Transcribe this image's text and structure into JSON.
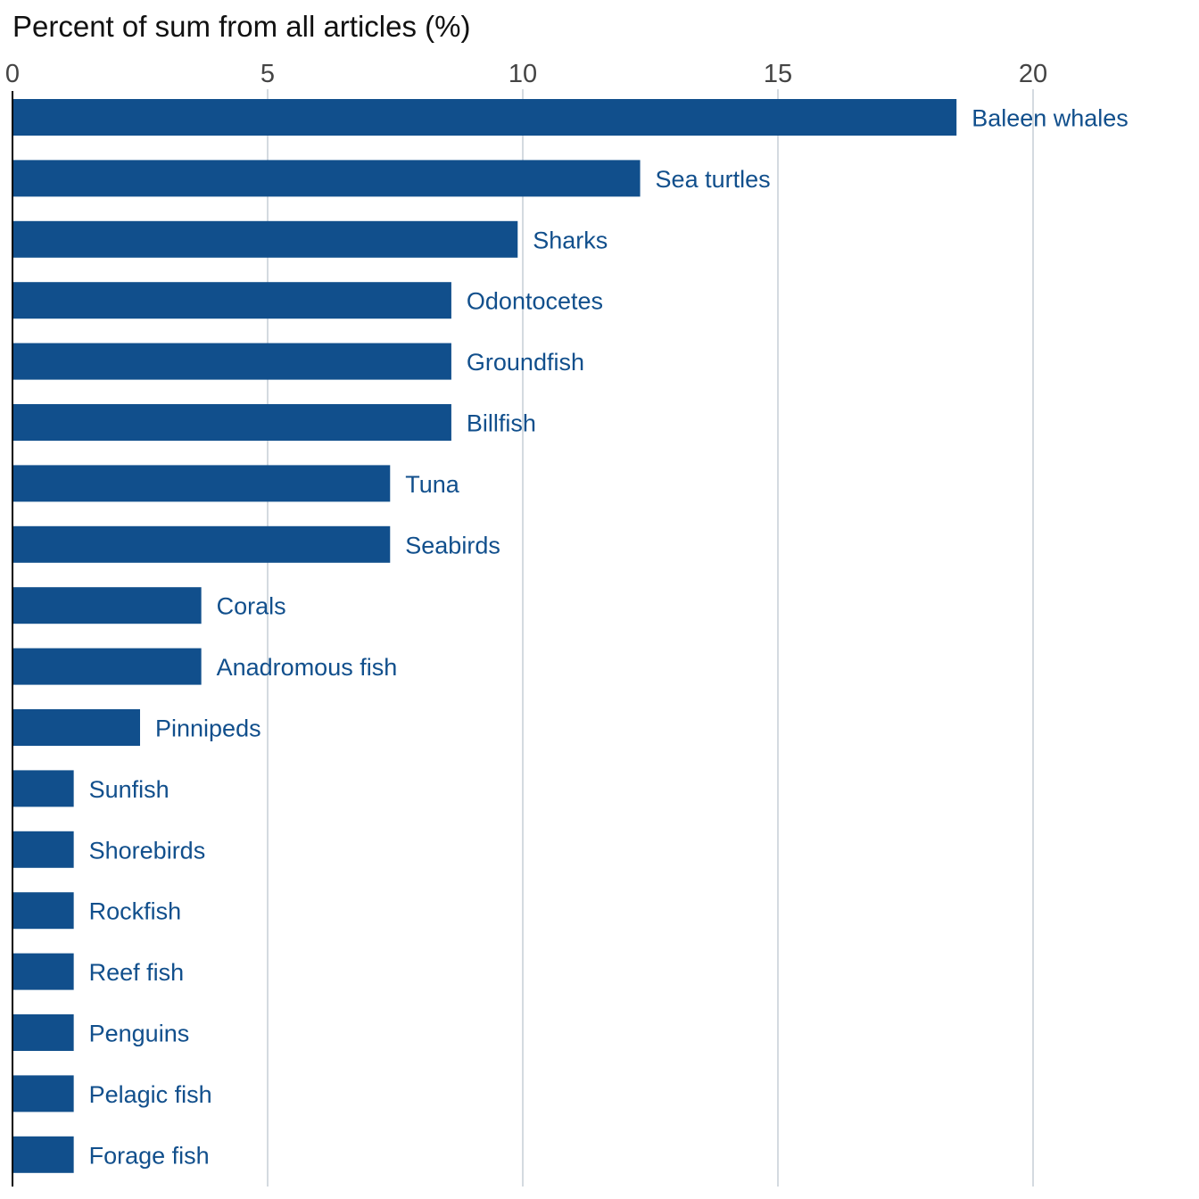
{
  "chart_data": {
    "type": "bar",
    "orientation": "horizontal",
    "title": "",
    "xlabel": "Percent of sum from all articles (%)",
    "ylabel": "",
    "xlim": [
      0,
      23
    ],
    "x_ticks": [
      0,
      5,
      10,
      15,
      20
    ],
    "grid": "vertical",
    "axis_position": "top",
    "bar_color": "#114f8c",
    "label_color": "#114f8c",
    "categories": [
      "Baleen whales",
      "Sea turtles",
      "Sharks",
      "Odontocetes",
      "Groundfish",
      "Billfish",
      "Tuna",
      "Seabirds",
      "Corals",
      "Anadromous fish",
      "Pinnipeds",
      "Sunfish",
      "Shorebirds",
      "Rockfish",
      "Reef fish",
      "Penguins",
      "Pelagic fish",
      "Forage fish"
    ],
    "values": [
      18.5,
      12.3,
      9.9,
      8.6,
      8.6,
      8.6,
      7.4,
      7.4,
      3.7,
      3.7,
      2.5,
      1.2,
      1.2,
      1.2,
      1.2,
      1.2,
      1.2,
      1.2
    ]
  }
}
